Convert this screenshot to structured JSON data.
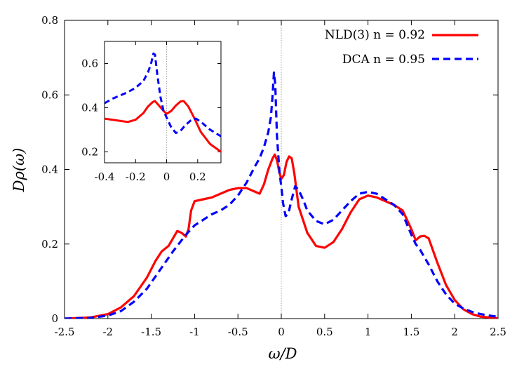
{
  "chart_data": [
    {
      "type": "line",
      "xlabel": "ω/D",
      "ylabel": "Dρ(ω)",
      "xlim": [
        -2.5,
        2.5
      ],
      "ylim": [
        0,
        0.8
      ],
      "x_ticks": [
        "-2.5",
        "-2",
        "-1.5",
        "-1",
        "-0.5",
        "0",
        "0.5",
        "1",
        "1.5",
        "2",
        "2.5"
      ],
      "y_ticks": [
        "0",
        "0.2",
        "0.4",
        "0.6",
        "0.8"
      ],
      "grid": false,
      "legend_position": "top-right",
      "series": [
        {
          "name": "NLD(3) n = 0.92",
          "color": "#ff0000",
          "style": "solid",
          "points": [
            [
              -2.5,
              0
            ],
            [
              -2.2,
              0.003
            ],
            [
              -2.0,
              0.012
            ],
            [
              -1.85,
              0.03
            ],
            [
              -1.7,
              0.06
            ],
            [
              -1.55,
              0.11
            ],
            [
              -1.45,
              0.155
            ],
            [
              -1.38,
              0.18
            ],
            [
              -1.3,
              0.195
            ],
            [
              -1.25,
              0.215
            ],
            [
              -1.2,
              0.235
            ],
            [
              -1.15,
              0.23
            ],
            [
              -1.1,
              0.22
            ],
            [
              -1.07,
              0.24
            ],
            [
              -1.04,
              0.29
            ],
            [
              -1.0,
              0.315
            ],
            [
              -0.9,
              0.32
            ],
            [
              -0.8,
              0.325
            ],
            [
              -0.7,
              0.335
            ],
            [
              -0.6,
              0.345
            ],
            [
              -0.5,
              0.35
            ],
            [
              -0.4,
              0.35
            ],
            [
              -0.3,
              0.34
            ],
            [
              -0.25,
              0.335
            ],
            [
              -0.2,
              0.36
            ],
            [
              -0.15,
              0.4
            ],
            [
              -0.1,
              0.43
            ],
            [
              -0.075,
              0.44
            ],
            [
              -0.05,
              0.425
            ],
            [
              -0.02,
              0.39
            ],
            [
              0.0,
              0.375
            ],
            [
              0.03,
              0.385
            ],
            [
              0.06,
              0.42
            ],
            [
              0.09,
              0.435
            ],
            [
              0.12,
              0.43
            ],
            [
              0.15,
              0.39
            ],
            [
              0.2,
              0.3
            ],
            [
              0.3,
              0.23
            ],
            [
              0.4,
              0.195
            ],
            [
              0.5,
              0.19
            ],
            [
              0.6,
              0.205
            ],
            [
              0.7,
              0.24
            ],
            [
              0.8,
              0.285
            ],
            [
              0.9,
              0.32
            ],
            [
              1.0,
              0.33
            ],
            [
              1.1,
              0.325
            ],
            [
              1.2,
              0.315
            ],
            [
              1.3,
              0.305
            ],
            [
              1.4,
              0.29
            ],
            [
              1.5,
              0.24
            ],
            [
              1.55,
              0.21
            ],
            [
              1.6,
              0.22
            ],
            [
              1.65,
              0.222
            ],
            [
              1.7,
              0.215
            ],
            [
              1.8,
              0.15
            ],
            [
              1.9,
              0.09
            ],
            [
              2.0,
              0.05
            ],
            [
              2.1,
              0.025
            ],
            [
              2.2,
              0.012
            ],
            [
              2.3,
              0.005
            ],
            [
              2.5,
              0.001
            ]
          ]
        },
        {
          "name": "DCA n = 0.95",
          "color": "#0000ff",
          "style": "dashed",
          "points": [
            [
              -2.5,
              0
            ],
            [
              -2.2,
              0.002
            ],
            [
              -2.0,
              0.008
            ],
            [
              -1.85,
              0.02
            ],
            [
              -1.7,
              0.045
            ],
            [
              -1.55,
              0.08
            ],
            [
              -1.4,
              0.13
            ],
            [
              -1.25,
              0.18
            ],
            [
              -1.1,
              0.225
            ],
            [
              -1.0,
              0.25
            ],
            [
              -0.9,
              0.265
            ],
            [
              -0.8,
              0.28
            ],
            [
              -0.7,
              0.29
            ],
            [
              -0.6,
              0.305
            ],
            [
              -0.5,
              0.33
            ],
            [
              -0.4,
              0.365
            ],
            [
              -0.3,
              0.41
            ],
            [
              -0.25,
              0.43
            ],
            [
              -0.2,
              0.46
            ],
            [
              -0.15,
              0.5
            ],
            [
              -0.12,
              0.54
            ],
            [
              -0.1,
              0.6
            ],
            [
              -0.085,
              0.66
            ],
            [
              -0.07,
              0.63
            ],
            [
              -0.05,
              0.49
            ],
            [
              -0.02,
              0.39
            ],
            [
              0.0,
              0.355
            ],
            [
              0.02,
              0.31
            ],
            [
              0.05,
              0.275
            ],
            [
              0.08,
              0.28
            ],
            [
              0.12,
              0.32
            ],
            [
              0.16,
              0.355
            ],
            [
              0.2,
              0.345
            ],
            [
              0.25,
              0.32
            ],
            [
              0.3,
              0.29
            ],
            [
              0.4,
              0.262
            ],
            [
              0.5,
              0.253
            ],
            [
              0.6,
              0.265
            ],
            [
              0.7,
              0.29
            ],
            [
              0.8,
              0.315
            ],
            [
              0.9,
              0.335
            ],
            [
              1.0,
              0.34
            ],
            [
              1.1,
              0.335
            ],
            [
              1.2,
              0.32
            ],
            [
              1.3,
              0.305
            ],
            [
              1.4,
              0.28
            ],
            [
              1.5,
              0.225
            ],
            [
              1.55,
              0.2
            ],
            [
              1.6,
              0.185
            ],
            [
              1.7,
              0.145
            ],
            [
              1.8,
              0.1
            ],
            [
              1.9,
              0.065
            ],
            [
              2.0,
              0.04
            ],
            [
              2.1,
              0.027
            ],
            [
              2.2,
              0.018
            ],
            [
              2.3,
              0.012
            ],
            [
              2.4,
              0.008
            ],
            [
              2.5,
              0.005
            ]
          ]
        }
      ]
    },
    {
      "type": "line",
      "xlim": [
        -0.4,
        0.35
      ],
      "ylim": [
        0.15,
        0.7
      ],
      "x_ticks": [
        "-0.4",
        "-0.2",
        "0",
        "0.2"
      ],
      "y_ticks": [
        "0.2",
        "0.4",
        "0.6"
      ],
      "grid": false,
      "series": [
        {
          "color": "#ff0000",
          "style": "solid",
          "points": [
            [
              -0.4,
              0.35
            ],
            [
              -0.35,
              0.345
            ],
            [
              -0.3,
              0.34
            ],
            [
              -0.25,
              0.335
            ],
            [
              -0.2,
              0.345
            ],
            [
              -0.15,
              0.375
            ],
            [
              -0.12,
              0.405
            ],
            [
              -0.09,
              0.425
            ],
            [
              -0.075,
              0.43
            ],
            [
              -0.05,
              0.41
            ],
            [
              -0.02,
              0.385
            ],
            [
              0.0,
              0.372
            ],
            [
              0.03,
              0.385
            ],
            [
              0.06,
              0.41
            ],
            [
              0.09,
              0.428
            ],
            [
              0.11,
              0.43
            ],
            [
              0.14,
              0.405
            ],
            [
              0.18,
              0.35
            ],
            [
              0.22,
              0.29
            ],
            [
              0.28,
              0.235
            ],
            [
              0.35,
              0.2
            ]
          ]
        },
        {
          "color": "#0000ff",
          "style": "dashed",
          "points": [
            [
              -0.4,
              0.42
            ],
            [
              -0.35,
              0.44
            ],
            [
              -0.3,
              0.455
            ],
            [
              -0.25,
              0.47
            ],
            [
              -0.2,
              0.49
            ],
            [
              -0.15,
              0.52
            ],
            [
              -0.12,
              0.56
            ],
            [
              -0.1,
              0.6
            ],
            [
              -0.085,
              0.645
            ],
            [
              -0.075,
              0.64
            ],
            [
              -0.06,
              0.55
            ],
            [
              -0.04,
              0.45
            ],
            [
              -0.02,
              0.385
            ],
            [
              0.0,
              0.355
            ],
            [
              0.03,
              0.31
            ],
            [
              0.06,
              0.285
            ],
            [
              0.09,
              0.295
            ],
            [
              0.12,
              0.32
            ],
            [
              0.16,
              0.345
            ],
            [
              0.19,
              0.35
            ],
            [
              0.23,
              0.33
            ],
            [
              0.28,
              0.3
            ],
            [
              0.35,
              0.27
            ]
          ]
        }
      ]
    }
  ]
}
